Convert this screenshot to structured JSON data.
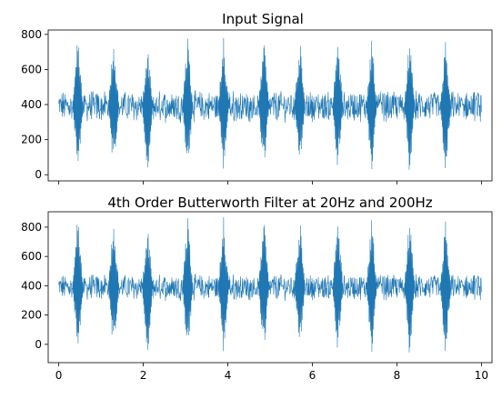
{
  "colors": {
    "line": "#1f77b4",
    "background": "#ffffff",
    "axes": "#000000"
  },
  "chart_data": [
    {
      "type": "line",
      "title": "Input Signal",
      "xlabel": "",
      "ylabel": "",
      "xlim": [
        -0.25,
        10.25
      ],
      "ylim": [
        -35,
        825
      ],
      "xticks": [
        0,
        2,
        4,
        6,
        8,
        10
      ],
      "xtick_labels": [],
      "yticks": [
        0,
        200,
        400,
        600,
        800
      ],
      "ytick_labels": [
        "0",
        "200",
        "400",
        "600",
        "800"
      ],
      "grid": false,
      "legend": "none",
      "signal": {
        "x_range": [
          0,
          10
        ],
        "baseline": 390,
        "noise_amplitude": 75,
        "burst_centers": [
          0.45,
          1.3,
          2.1,
          3.05,
          3.9,
          4.85,
          5.7,
          6.6,
          7.4,
          8.3,
          9.15
        ],
        "burst_min": 0,
        "burst_max": 790,
        "clipped": true
      }
    },
    {
      "type": "line",
      "title": "4th Order Butterworth Filter at 20Hz and 200Hz",
      "xlabel": "",
      "ylabel": "",
      "xlim": [
        -0.25,
        10.25
      ],
      "ylim": [
        -125,
        905
      ],
      "xticks": [
        0,
        2,
        4,
        6,
        8,
        10
      ],
      "xtick_labels": [
        "0",
        "2",
        "4",
        "6",
        "8",
        "10"
      ],
      "yticks": [
        0,
        200,
        400,
        600,
        800
      ],
      "ytick_labels": [
        "0",
        "200",
        "400",
        "600",
        "800"
      ],
      "grid": false,
      "legend": "none",
      "signal": {
        "x_range": [
          0,
          10
        ],
        "baseline": 390,
        "noise_amplitude": 75,
        "burst_centers": [
          0.45,
          1.3,
          2.1,
          3.05,
          3.9,
          4.85,
          5.7,
          6.6,
          7.4,
          8.3,
          9.15
        ],
        "burst_min": -90,
        "burst_max": 880,
        "clipped": false
      }
    }
  ]
}
